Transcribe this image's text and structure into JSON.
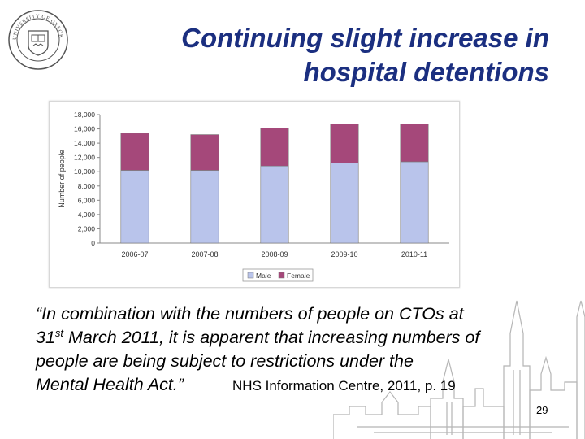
{
  "slide": {
    "title_line1": "Continuing slight increase in",
    "title_line2": "hospital detentions",
    "page_number": "29",
    "logo_text": "UNIVERSITY OF OXFORD"
  },
  "quote": {
    "line1": "“In combination with the numbers of people on CTOs at",
    "line2_a": "31",
    "line2_sup": "st",
    "line2_b": " March 2011, it is apparent that increasing numbers of",
    "line3": "people are being subject to restrictions under the",
    "line4": "Mental Health Act.”",
    "citation": "NHS Information Centre, 2011, p. 19"
  },
  "chart_data": {
    "type": "bar",
    "stacked": true,
    "categories": [
      "2006-07",
      "2007-08",
      "2008-09",
      "2009-10",
      "2010-11"
    ],
    "series": [
      {
        "name": "Male",
        "values": [
          10200,
          10200,
          10800,
          11200,
          11400
        ],
        "color": "#b9c4eb"
      },
      {
        "name": "Female",
        "values": [
          5200,
          5000,
          5300,
          5500,
          5300
        ],
        "color": "#a5487a"
      }
    ],
    "ylabel": "Number of people",
    "ylim": [
      0,
      18000
    ],
    "yticks": [
      "0",
      "2,000",
      "4,000",
      "6,000",
      "8,000",
      "10,000",
      "12,000",
      "14,000",
      "16,000",
      "18,000"
    ],
    "grid": false,
    "legend": "bottom"
  },
  "colors": {
    "title": "#1b2f80",
    "male": "#b9c4eb",
    "female": "#a5487a"
  }
}
